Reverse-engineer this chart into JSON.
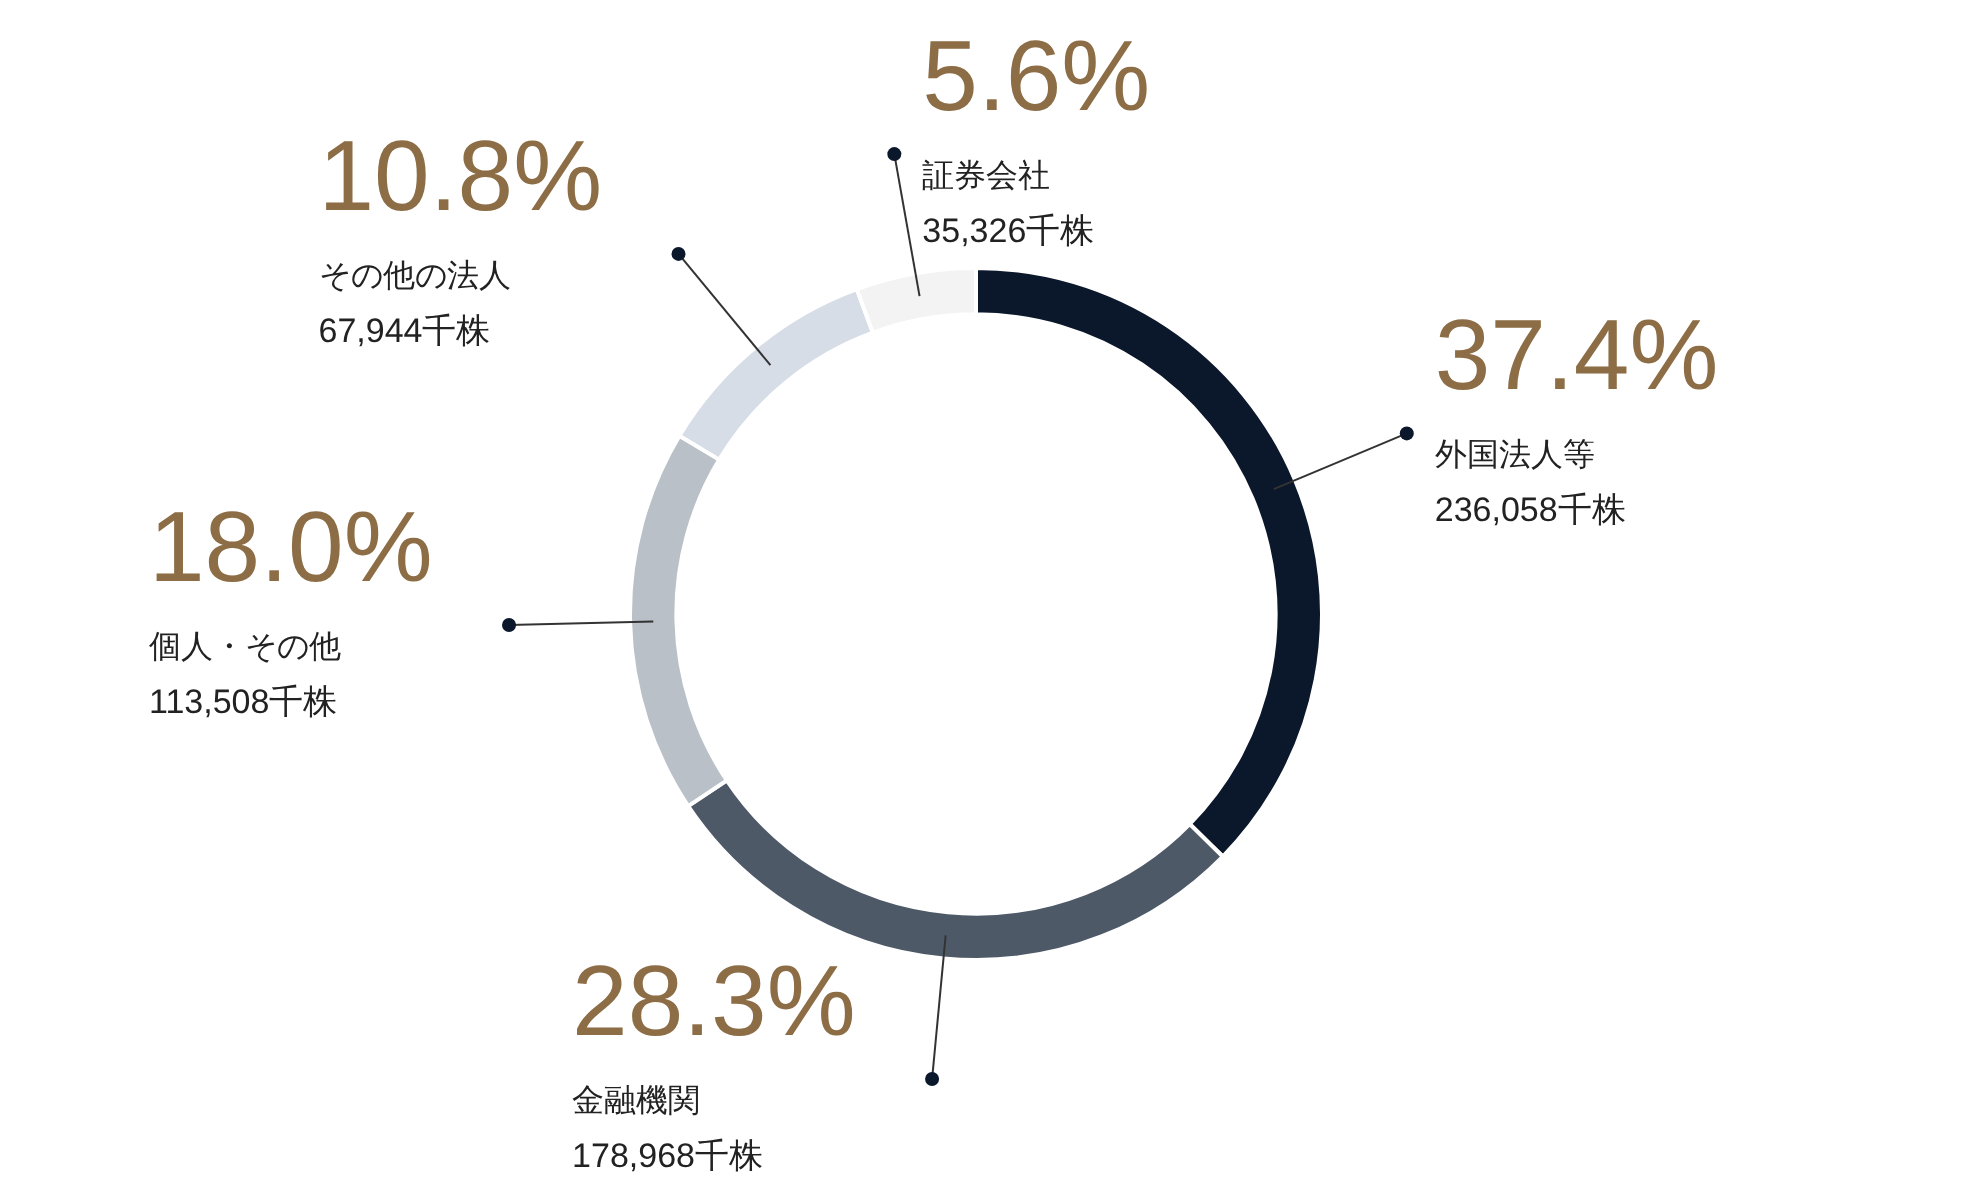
{
  "chart_data": {
    "type": "donut",
    "categories": [
      "外国法人等",
      "金融機関",
      "個人・その他",
      "その他の法人",
      "証券会社"
    ],
    "values": [
      37.4,
      28.3,
      18.0,
      10.8,
      5.6
    ],
    "colors": [
      "#0b172b",
      "#4e5968",
      "#b9c0c8",
      "#d6dde7",
      "#f3f3f3"
    ],
    "value_labels": [
      "37.4%",
      "28.3%",
      "18.0%",
      "10.8%",
      "5.6%"
    ],
    "annotations": [
      "236,058千株",
      "178,968千株",
      "113,508千株",
      "67,944千株",
      "35,326千株"
    ]
  }
}
